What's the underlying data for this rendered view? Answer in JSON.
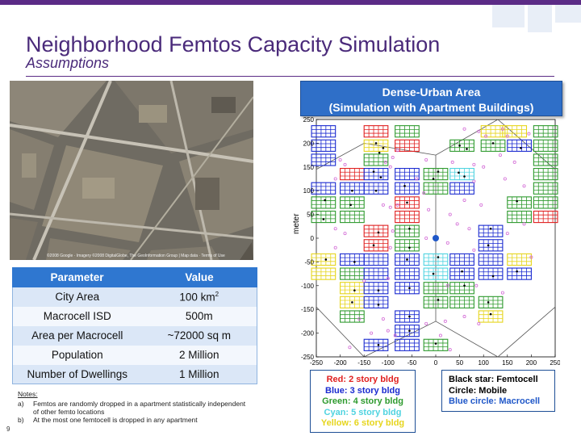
{
  "slide": {
    "title": "Neighborhood Femtos Capacity Simulation",
    "subtitle": "Assumptions",
    "page_number": "9",
    "accent_color": "#5b2b86"
  },
  "aerial_photo": {
    "credit": "©2008 Google · Imagery ©2008 DigitalGlobe, The GeoInformation Group | Map data · Terms of Use"
  },
  "table": {
    "headers": [
      "Parameter",
      "Value"
    ],
    "rows": [
      {
        "param": "City Area",
        "value": "100 km",
        "value_sup": "2"
      },
      {
        "param": "Macrocell ISD",
        "value": "500m"
      },
      {
        "param": "Area per Macrocell",
        "value": "~72000 sq m"
      },
      {
        "param": "Population",
        "value": "2 Million"
      },
      {
        "param": "Number of Dwellings",
        "value": "1 Million"
      }
    ],
    "header_color": "#2f77d0"
  },
  "notes": {
    "heading": "Notes:",
    "items": [
      {
        "label": "a)",
        "text": "Femtos are randomly dropped in a apartment statistically independent of other femto locations"
      },
      {
        "label": "b)",
        "text": "At the most one femtocell is dropped in any apartment"
      }
    ]
  },
  "banner": {
    "line1": "Dense-Urban Area",
    "line2": "(Simulation with Apartment Buildings)"
  },
  "legend_buildings": [
    {
      "text": "Red: 2 story bldg",
      "color": "#e02020"
    },
    {
      "text": "Blue: 3 story bldg",
      "color": "#1a2ad0"
    },
    {
      "text": "Green: 4 story bldg",
      "color": "#2e9a2e"
    },
    {
      "text": "Cyan: 5 story bldg",
      "color": "#4fd3e0"
    },
    {
      "text": "Yellow: 6 story bldg",
      "color": "#e6d51c"
    }
  ],
  "legend_symbols": [
    {
      "text": "Black star: Femtocell",
      "color": "#000000"
    },
    {
      "text": "Circle: Mobile",
      "color": "#000000"
    },
    {
      "text": "Blue circle: Macrocell",
      "color": "#1f57c8"
    }
  ],
  "chart_data": {
    "type": "scatter",
    "title": "",
    "xlabel": "",
    "ylabel": "meter",
    "xlim": [
      -250,
      250
    ],
    "ylim": [
      -250,
      250
    ],
    "x_ticks": [
      -250,
      -200,
      -150,
      -100,
      -50,
      0,
      50,
      100,
      150,
      200,
      250
    ],
    "y_ticks": [
      250,
      200,
      150,
      100,
      50,
      0,
      -50,
      -100,
      -150,
      -200,
      -250
    ],
    "macrocell": {
      "x": 0,
      "y": 0,
      "color": "#1f57c8"
    },
    "hexagon_vertices": [
      [
        -250,
        145
      ],
      [
        -150,
        200
      ],
      [
        0,
        175
      ],
      [
        130,
        250
      ],
      [
        250,
        145
      ],
      [
        250,
        -145
      ],
      [
        130,
        -250
      ],
      [
        0,
        -175
      ],
      [
        -150,
        -250
      ],
      [
        -250,
        -145
      ]
    ],
    "spokes": [
      [
        0,
        0,
        0,
        175
      ],
      [
        0,
        0,
        0,
        -175
      ]
    ],
    "building_colors": {
      "red": "#e02020",
      "blue": "#1a2ad0",
      "green": "#2e9a2e",
      "cyan": "#4fd3e0",
      "yellow": "#e6d51c"
    },
    "buildings": [
      {
        "x": -235,
        "y": 225,
        "c": "blue"
      },
      {
        "x": -125,
        "y": 225,
        "c": "red"
      },
      {
        "x": -60,
        "y": 225,
        "c": "green"
      },
      {
        "x": 120,
        "y": 225,
        "c": "yellow"
      },
      {
        "x": 165,
        "y": 225,
        "c": "yellow"
      },
      {
        "x": 230,
        "y": 225,
        "c": "green"
      },
      {
        "x": -235,
        "y": 195,
        "c": "blue"
      },
      {
        "x": -125,
        "y": 195,
        "c": "yellow"
      },
      {
        "x": -60,
        "y": 195,
        "c": "red"
      },
      {
        "x": 55,
        "y": 195,
        "c": "green"
      },
      {
        "x": 120,
        "y": 195,
        "c": "green"
      },
      {
        "x": 175,
        "y": 195,
        "c": "blue"
      },
      {
        "x": 230,
        "y": 195,
        "c": "green"
      },
      {
        "x": -235,
        "y": 165,
        "c": "blue"
      },
      {
        "x": -125,
        "y": 165,
        "c": "green"
      },
      {
        "x": 230,
        "y": 165,
        "c": "green"
      },
      {
        "x": -175,
        "y": 135,
        "c": "red"
      },
      {
        "x": -125,
        "y": 135,
        "c": "blue"
      },
      {
        "x": -60,
        "y": 135,
        "c": "blue"
      },
      {
        "x": 0,
        "y": 135,
        "c": "green"
      },
      {
        "x": 55,
        "y": 135,
        "c": "cyan"
      },
      {
        "x": 230,
        "y": 135,
        "c": "green"
      },
      {
        "x": -235,
        "y": 105,
        "c": "blue"
      },
      {
        "x": -175,
        "y": 105,
        "c": "blue"
      },
      {
        "x": -125,
        "y": 105,
        "c": "blue"
      },
      {
        "x": -60,
        "y": 105,
        "c": "blue"
      },
      {
        "x": 0,
        "y": 105,
        "c": "green"
      },
      {
        "x": 55,
        "y": 105,
        "c": "blue"
      },
      {
        "x": 230,
        "y": 105,
        "c": "green"
      },
      {
        "x": -235,
        "y": 75,
        "c": "green"
      },
      {
        "x": -175,
        "y": 75,
        "c": "green"
      },
      {
        "x": -60,
        "y": 75,
        "c": "red"
      },
      {
        "x": 175,
        "y": 75,
        "c": "green"
      },
      {
        "x": 230,
        "y": 75,
        "c": "green"
      },
      {
        "x": -235,
        "y": 45,
        "c": "green"
      },
      {
        "x": -175,
        "y": 45,
        "c": "green"
      },
      {
        "x": -60,
        "y": 45,
        "c": "red"
      },
      {
        "x": 175,
        "y": 45,
        "c": "green"
      },
      {
        "x": 230,
        "y": 45,
        "c": "red"
      },
      {
        "x": -125,
        "y": 15,
        "c": "red"
      },
      {
        "x": -60,
        "y": 15,
        "c": "green"
      },
      {
        "x": 115,
        "y": 15,
        "c": "blue"
      },
      {
        "x": -125,
        "y": -15,
        "c": "red"
      },
      {
        "x": -60,
        "y": -15,
        "c": "green"
      },
      {
        "x": 115,
        "y": -15,
        "c": "blue"
      },
      {
        "x": -235,
        "y": -45,
        "c": "yellow"
      },
      {
        "x": -175,
        "y": -45,
        "c": "blue"
      },
      {
        "x": -125,
        "y": -45,
        "c": "blue"
      },
      {
        "x": -60,
        "y": -45,
        "c": "blue"
      },
      {
        "x": 0,
        "y": -45,
        "c": "cyan"
      },
      {
        "x": 55,
        "y": -45,
        "c": "blue"
      },
      {
        "x": 115,
        "y": -45,
        "c": "blue"
      },
      {
        "x": 175,
        "y": -45,
        "c": "yellow"
      },
      {
        "x": -235,
        "y": -75,
        "c": "yellow"
      },
      {
        "x": -175,
        "y": -75,
        "c": "green"
      },
      {
        "x": -125,
        "y": -75,
        "c": "blue"
      },
      {
        "x": -60,
        "y": -75,
        "c": "blue"
      },
      {
        "x": 0,
        "y": -75,
        "c": "cyan"
      },
      {
        "x": 55,
        "y": -75,
        "c": "blue"
      },
      {
        "x": 115,
        "y": -75,
        "c": "blue"
      },
      {
        "x": 175,
        "y": -75,
        "c": "blue"
      },
      {
        "x": -175,
        "y": -105,
        "c": "yellow"
      },
      {
        "x": -125,
        "y": -105,
        "c": "blue"
      },
      {
        "x": -60,
        "y": -105,
        "c": "blue"
      },
      {
        "x": 0,
        "y": -105,
        "c": "green"
      },
      {
        "x": 55,
        "y": -105,
        "c": "green"
      },
      {
        "x": -175,
        "y": -135,
        "c": "yellow"
      },
      {
        "x": -125,
        "y": -135,
        "c": "blue"
      },
      {
        "x": 0,
        "y": -135,
        "c": "green"
      },
      {
        "x": 55,
        "y": -135,
        "c": "green"
      },
      {
        "x": 115,
        "y": -135,
        "c": "green"
      },
      {
        "x": -175,
        "y": -165,
        "c": "green"
      },
      {
        "x": -60,
        "y": -165,
        "c": "blue"
      },
      {
        "x": 115,
        "y": -165,
        "c": "yellow"
      },
      {
        "x": -60,
        "y": -195,
        "c": "blue"
      },
      {
        "x": -125,
        "y": -225,
        "c": "blue"
      },
      {
        "x": -60,
        "y": -225,
        "c": "blue"
      },
      {
        "x": 0,
        "y": -225,
        "c": "green"
      }
    ],
    "femtocells": [
      [
        -125,
        200
      ],
      [
        -110,
        190
      ],
      [
        -118,
        180
      ],
      [
        50,
        195
      ],
      [
        65,
        188
      ],
      [
        120,
        200
      ],
      [
        178,
        190
      ],
      [
        -130,
        140
      ],
      [
        -115,
        128
      ],
      [
        5,
        140
      ],
      [
        -5,
        125
      ],
      [
        60,
        130
      ],
      [
        48,
        138
      ],
      [
        -175,
        100
      ],
      [
        -125,
        100
      ],
      [
        -65,
        110
      ],
      [
        -232,
        80
      ],
      [
        -178,
        70
      ],
      [
        -60,
        75
      ],
      [
        170,
        78
      ],
      [
        -235,
        40
      ],
      [
        -120,
        12
      ],
      [
        -55,
        20
      ],
      [
        115,
        20
      ],
      [
        -130,
        -15
      ],
      [
        -55,
        -20
      ],
      [
        110,
        -15
      ],
      [
        -230,
        -45
      ],
      [
        -170,
        -50
      ],
      [
        -60,
        -45
      ],
      [
        5,
        -40
      ],
      [
        -5,
        -75
      ],
      [
        55,
        -70
      ],
      [
        120,
        -80
      ],
      [
        170,
        -70
      ],
      [
        -170,
        -110
      ],
      [
        -120,
        -110
      ],
      [
        -55,
        -105
      ],
      [
        60,
        -100
      ],
      [
        -175,
        -135
      ],
      [
        -120,
        -140
      ],
      [
        5,
        -130
      ],
      [
        110,
        -135
      ],
      [
        -55,
        -165
      ],
      [
        115,
        -160
      ],
      [
        -55,
        -195
      ],
      [
        -120,
        -225
      ],
      [
        0,
        -222
      ]
    ],
    "mobiles": [
      [
        -105,
        160
      ],
      [
        -90,
        170
      ],
      [
        -80,
        185
      ],
      [
        -95,
        150
      ],
      [
        60,
        230
      ],
      [
        90,
        225
      ],
      [
        105,
        215
      ],
      [
        140,
        230
      ],
      [
        150,
        215
      ],
      [
        195,
        220
      ],
      [
        -200,
        165
      ],
      [
        -190,
        155
      ],
      [
        -20,
        165
      ],
      [
        35,
        160
      ],
      [
        80,
        155
      ],
      [
        100,
        150
      ],
      [
        165,
        160
      ],
      [
        135,
        175
      ],
      [
        -210,
        125
      ],
      [
        -40,
        125
      ],
      [
        -25,
        95
      ],
      [
        80,
        120
      ],
      [
        145,
        125
      ],
      [
        185,
        110
      ],
      [
        -110,
        70
      ],
      [
        -95,
        65
      ],
      [
        -80,
        70
      ],
      [
        -15,
        60
      ],
      [
        30,
        50
      ],
      [
        60,
        80
      ],
      [
        95,
        70
      ],
      [
        -210,
        20
      ],
      [
        -190,
        10
      ],
      [
        -90,
        15
      ],
      [
        -20,
        0
      ],
      [
        45,
        30
      ],
      [
        70,
        20
      ],
      [
        150,
        10
      ],
      [
        185,
        30
      ],
      [
        -210,
        -20
      ],
      [
        -95,
        -20
      ],
      [
        25,
        -10
      ],
      [
        80,
        -25
      ],
      [
        200,
        -40
      ],
      [
        -150,
        -90
      ],
      [
        -100,
        -85
      ],
      [
        25,
        -100
      ],
      [
        85,
        -100
      ],
      [
        140,
        -115
      ],
      [
        -160,
        -170
      ],
      [
        -110,
        -170
      ],
      [
        -20,
        -180
      ],
      [
        20,
        -175
      ],
      [
        60,
        -165
      ],
      [
        90,
        -180
      ],
      [
        -135,
        -200
      ],
      [
        -100,
        -195
      ],
      [
        -85,
        -205
      ],
      [
        10,
        -205
      ],
      [
        30,
        -235
      ],
      [
        -180,
        -230
      ]
    ]
  }
}
